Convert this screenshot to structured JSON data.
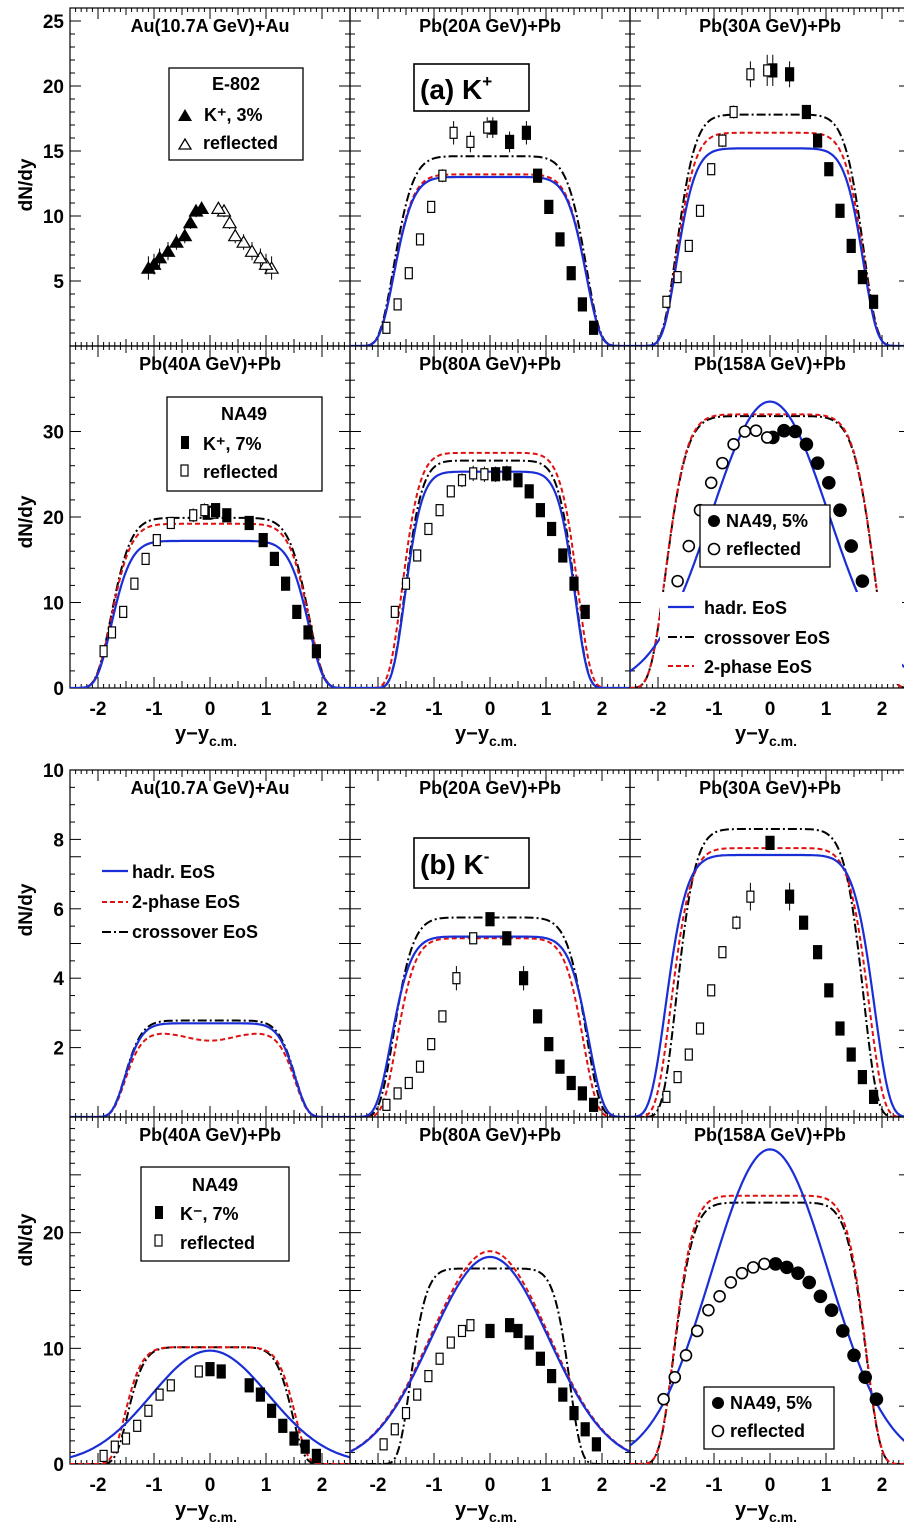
{
  "figure": {
    "label_a": "(a) K",
    "label_a_sup": "+",
    "label_b": "(b) K",
    "label_b_sup": "-",
    "ylabel": "dN/dy",
    "xlabel_main": "y−y",
    "xlabel_sub": "c.m.",
    "x_ticks": [
      "-2",
      "-1",
      "0",
      "1",
      "2"
    ]
  },
  "colors": {
    "hadr": "#1a2ed6",
    "twophase": "#e01010",
    "crossover": "#000000",
    "data": "#000000"
  },
  "legends": {
    "e802": {
      "title": "E-802",
      "k_entry": "K⁺, 3%",
      "reflected": "reflected"
    },
    "na49_kplus": {
      "title": "NA49",
      "k_entry": "K⁺, 7%",
      "reflected": "reflected"
    },
    "na49_5pct": {
      "k_entry": "NA49, 5%",
      "reflected": "reflected"
    },
    "eos_a": [
      "hadr. EoS",
      "crossover EoS",
      "2-phase EoS"
    ],
    "eos_b": [
      "hadr. EoS",
      "2-phase EoS",
      "crossover EoS"
    ],
    "na49_kminus": {
      "title": "NA49",
      "k_entry": "K⁻, 7%",
      "reflected": "reflected"
    }
  },
  "chart_data": [
    {
      "type": "line",
      "particle": "K+",
      "title": "Au(10.7A GeV)+Au",
      "ylim": [
        0,
        26
      ],
      "yticks": [
        5,
        10,
        15,
        20,
        25
      ],
      "xlim": [
        -2.5,
        2.5
      ],
      "marker": "triangle",
      "curves": {
        "hadr": {
          "w": 1.75,
          "plateau": 10.3,
          "dip": 0
        },
        "two": {
          "w": 1.75,
          "plateau": 10.1,
          "dip": 1.8
        },
        "cross": {
          "w": 1.75,
          "plateau": 10.6,
          "dip": 0
        }
      },
      "data": {
        "x": [
          -1.1,
          -1.0,
          -0.9,
          -0.75,
          -0.6,
          -0.45,
          -0.35,
          -0.25,
          -0.15
        ],
        "y": [
          6.0,
          6.3,
          6.8,
          7.3,
          8.0,
          8.5,
          9.5,
          10.4,
          10.6
        ],
        "err": [
          0.9,
          0.8,
          0.7,
          0.7,
          0.6,
          0.6,
          0.5,
          0.5,
          0.5
        ]
      }
    },
    {
      "type": "line",
      "particle": "K+",
      "title": "Pb(20A GeV)+Pb",
      "ylim": [
        0,
        26
      ],
      "yticks": [
        5,
        10,
        15,
        20,
        25
      ],
      "xlim": [
        -2.5,
        2.5
      ],
      "marker": "square",
      "curves": {
        "hadr": {
          "w": 1.75,
          "plateau": 13.0,
          "dip": 0
        },
        "two": {
          "w": 1.75,
          "plateau": 13.2,
          "dip": 0
        },
        "cross": {
          "w": 1.75,
          "plateau": 14.6,
          "dip": 0
        }
      },
      "data": {
        "x": [
          0.05,
          0.35,
          0.65,
          0.85,
          1.05,
          1.25,
          1.45,
          1.65,
          1.85
        ],
        "y": [
          16.8,
          15.7,
          16.4,
          13.1,
          10.7,
          8.2,
          5.6,
          3.2,
          1.4
        ],
        "err": [
          0.8,
          0.8,
          0.9,
          0.5,
          0.4,
          0.3,
          0.3,
          0.2,
          0.2
        ]
      }
    },
    {
      "type": "line",
      "particle": "K+",
      "title": "Pb(30A GeV)+Pb",
      "ylim": [
        0,
        26
      ],
      "yticks": [
        5,
        10,
        15,
        20,
        25
      ],
      "xlim": [
        -2.5,
        2.5
      ],
      "marker": "square",
      "curves": {
        "hadr": {
          "w": 1.7,
          "plateau": 15.2,
          "dip": 0
        },
        "two": {
          "w": 1.7,
          "plateau": 16.4,
          "dip": 0
        },
        "cross": {
          "w": 1.7,
          "plateau": 17.8,
          "dip": 0
        }
      },
      "data": {
        "x": [
          0.05,
          0.35,
          0.65,
          0.85,
          1.05,
          1.25,
          1.45,
          1.65,
          1.85
        ],
        "y": [
          21.2,
          20.9,
          18.0,
          15.8,
          13.6,
          10.4,
          7.7,
          5.3,
          3.4
        ],
        "err": [
          1.2,
          1.0,
          0.5,
          0.5,
          0.4,
          0.3,
          0.3,
          0.2,
          0.2
        ]
      }
    },
    {
      "type": "line",
      "particle": "K+",
      "title": "Pb(40A GeV)+Pb",
      "ylim": [
        0,
        40
      ],
      "yticks": [
        0,
        10,
        20,
        30
      ],
      "xlim": [
        -2.5,
        2.5
      ],
      "marker": "square",
      "curves": {
        "hadr": {
          "w": 1.8,
          "plateau": 17.2,
          "dip": 0
        },
        "two": {
          "w": 1.8,
          "plateau": 19.2,
          "dip": 0
        },
        "cross": {
          "w": 1.8,
          "plateau": 19.9,
          "dip": 0
        }
      },
      "data": {
        "x": [
          -0.05,
          0.1,
          0.3,
          0.7,
          0.95,
          1.15,
          1.35,
          1.55,
          1.75,
          1.9
        ],
        "y": [
          20.5,
          20.8,
          20.2,
          19.3,
          17.3,
          15.1,
          12.2,
          8.9,
          6.5,
          4.3
        ],
        "err": [
          0.8,
          0.8,
          0.8,
          0.6,
          0.6,
          0.5,
          0.5,
          0.4,
          0.3,
          0.3
        ]
      }
    },
    {
      "type": "line",
      "particle": "K+",
      "title": "Pb(80A GeV)+Pb",
      "ylim": [
        0,
        40
      ],
      "yticks": [
        0,
        10,
        20,
        30
      ],
      "xlim": [
        -2.5,
        2.5
      ],
      "marker": "square",
      "curves": {
        "hadr": {
          "w": 1.55,
          "plateau": 25.3,
          "dip": 0
        },
        "two": {
          "w": 1.6,
          "plateau": 27.5,
          "dip": 0
        },
        "cross": {
          "w": 1.55,
          "plateau": 26.6,
          "dip": 0
        }
      },
      "data": {
        "x": [
          0.1,
          0.3,
          0.5,
          0.7,
          0.9,
          1.1,
          1.3,
          1.5,
          1.7
        ],
        "y": [
          25.0,
          25.1,
          24.3,
          23.0,
          20.8,
          18.6,
          15.5,
          12.2,
          8.9
        ],
        "err": [
          0.9,
          0.9,
          0.8,
          0.7,
          0.6,
          0.6,
          0.5,
          0.5,
          0.4
        ]
      }
    },
    {
      "type": "line",
      "particle": "K+",
      "title": "Pb(158A GeV)+Pb",
      "ylim": [
        0,
        40
      ],
      "yticks": [
        0,
        10,
        20,
        30
      ],
      "xlim": [
        -2.5,
        2.5
      ],
      "marker": "circle",
      "curves": {
        "hadr": {
          "w": 0,
          "plateau": 33.5,
          "dip": 0
        },
        "two": {
          "w": 1.9,
          "plateau": 32.0,
          "dip": 0
        },
        "cross": {
          "w": 1.9,
          "plateau": 31.8,
          "dip": 0
        }
      },
      "data": {
        "x": [
          0.05,
          0.25,
          0.45,
          0.65,
          0.85,
          1.05,
          1.25,
          1.45,
          1.65,
          1.85
        ],
        "y": [
          29.3,
          30.1,
          30.0,
          28.5,
          26.3,
          24.0,
          20.8,
          16.6,
          12.5,
          6.5
        ],
        "err": [
          0.7,
          0.7,
          0.7,
          0.7,
          0.6,
          0.6,
          0.6,
          0.6,
          0.6,
          0.6
        ]
      }
    },
    {
      "type": "line",
      "particle": "K-",
      "title": "Au(10.7A GeV)+Au",
      "ylim": [
        0,
        10
      ],
      "yticks": [
        2,
        4,
        6,
        8,
        10
      ],
      "xlim": [
        -2.5,
        2.5
      ],
      "marker": "none",
      "curves": {
        "hadr": {
          "w": 1.55,
          "plateau": 2.7,
          "dip": 0
        },
        "two": {
          "w": 1.55,
          "plateau": 2.45,
          "dip": 0.25
        },
        "cross": {
          "w": 1.55,
          "plateau": 2.78,
          "dip": 0
        }
      },
      "data": {
        "x": [],
        "y": [],
        "err": []
      }
    },
    {
      "type": "line",
      "particle": "K-",
      "title": "Pb(20A GeV)+Pb",
      "ylim": [
        0,
        10
      ],
      "yticks": [
        2,
        4,
        6,
        8,
        10
      ],
      "xlim": [
        -2.5,
        2.5
      ],
      "marker": "square",
      "curves": {
        "hadr": {
          "w": 1.8,
          "plateau": 5.2,
          "dip": 0
        },
        "two": {
          "w": 1.7,
          "plateau": 5.15,
          "dip": 0
        },
        "cross": {
          "w": 1.75,
          "plateau": 5.75,
          "dip": 0
        }
      },
      "data": {
        "x": [
          0.0,
          0.3,
          0.6,
          0.85,
          1.05,
          1.25,
          1.45,
          1.65,
          1.85
        ],
        "y": [
          5.7,
          5.15,
          4.0,
          2.9,
          2.1,
          1.45,
          0.98,
          0.68,
          0.35
        ],
        "err": [
          0.15,
          0.15,
          0.35,
          0.12,
          0.1,
          0.08,
          0.07,
          0.06,
          0.05
        ]
      }
    },
    {
      "type": "line",
      "particle": "K-",
      "title": "Pb(30A GeV)+Pb",
      "ylim": [
        0,
        10
      ],
      "yticks": [
        2,
        4,
        6,
        8,
        10
      ],
      "xlim": [
        -2.5,
        2.5
      ],
      "marker": "square",
      "curves": {
        "hadr": {
          "w": 1.9,
          "plateau": 7.55,
          "dip": 0
        },
        "two": {
          "w": 1.8,
          "plateau": 7.75,
          "dip": 0
        },
        "cross": {
          "w": 1.7,
          "plateau": 8.3,
          "dip": 0
        }
      },
      "data": {
        "x": [
          0.0,
          0.35,
          0.6,
          0.85,
          1.05,
          1.25,
          1.45,
          1.65,
          1.85
        ],
        "y": [
          7.9,
          6.35,
          5.6,
          4.75,
          3.65,
          2.55,
          1.8,
          1.15,
          0.58
        ],
        "err": [
          0.15,
          0.4,
          0.2,
          0.15,
          0.12,
          0.1,
          0.08,
          0.07,
          0.06
        ]
      }
    },
    {
      "type": "line",
      "particle": "K-",
      "title": "Pb(40A GeV)+Pb",
      "ylim": [
        0,
        30
      ],
      "yticks": [
        0,
        10,
        20
      ],
      "xlim": [
        -2.5,
        2.5
      ],
      "marker": "square",
      "curves": {
        "hadr": {
          "w": 0,
          "plateau": 9.8,
          "dip": 0
        },
        "two": {
          "w": 1.55,
          "plateau": 10.1,
          "dip": 0
        },
        "cross": {
          "w": 1.5,
          "plateau": 10.1,
          "dip": 0
        }
      },
      "data": {
        "x": [
          0.0,
          0.2,
          0.7,
          0.9,
          1.1,
          1.3,
          1.5,
          1.7,
          1.9
        ],
        "y": [
          8.2,
          8.0,
          6.8,
          6.0,
          4.6,
          3.3,
          2.2,
          1.5,
          0.7
        ],
        "err": [
          0.3,
          0.3,
          0.3,
          0.3,
          0.2,
          0.2,
          0.2,
          0.1,
          0.1
        ]
      }
    },
    {
      "type": "line",
      "particle": "K-",
      "title": "Pb(80A GeV)+Pb",
      "ylim": [
        0,
        30
      ],
      "yticks": [
        0,
        10,
        20
      ],
      "xlim": [
        -2.5,
        2.5
      ],
      "marker": "square",
      "curves": {
        "hadr": {
          "w": 0,
          "plateau": 17.9,
          "dip": 0
        },
        "two": {
          "w": 0,
          "plateau": 18.4,
          "dip": 0
        },
        "cross": {
          "w": 1.45,
          "plateau": 16.9,
          "dip": 0
        }
      },
      "data": {
        "x": [
          0.0,
          0.35,
          0.5,
          0.7,
          0.9,
          1.1,
          1.3,
          1.5,
          1.7,
          1.9
        ],
        "y": [
          11.5,
          12.0,
          11.5,
          10.5,
          9.1,
          7.6,
          6.0,
          4.4,
          3.0,
          1.7
        ],
        "err": [
          0.4,
          0.4,
          0.4,
          0.4,
          0.3,
          0.3,
          0.3,
          0.2,
          0.2,
          0.2
        ]
      }
    },
    {
      "type": "line",
      "particle": "K-",
      "title": "Pb(158A GeV)+Pb",
      "ylim": [
        0,
        30
      ],
      "yticks": [
        0,
        10,
        20
      ],
      "xlim": [
        -2.5,
        2.5
      ],
      "marker": "circle",
      "curves": {
        "hadr": {
          "w": 0,
          "plateau": 27.2,
          "dip": 0
        },
        "two": {
          "w": 1.75,
          "plateau": 23.2,
          "dip": 0
        },
        "cross": {
          "w": 1.75,
          "plateau": 22.6,
          "dip": 0
        }
      },
      "data": {
        "x": [
          0.1,
          0.3,
          0.5,
          0.7,
          0.9,
          1.1,
          1.3,
          1.5,
          1.7,
          1.9
        ],
        "y": [
          17.3,
          17.0,
          16.5,
          15.7,
          14.5,
          13.3,
          11.5,
          9.4,
          7.5,
          5.6
        ],
        "err": [
          0.3,
          0.3,
          0.3,
          0.3,
          0.3,
          0.3,
          0.3,
          0.3,
          0.3,
          0.3
        ]
      }
    }
  ]
}
